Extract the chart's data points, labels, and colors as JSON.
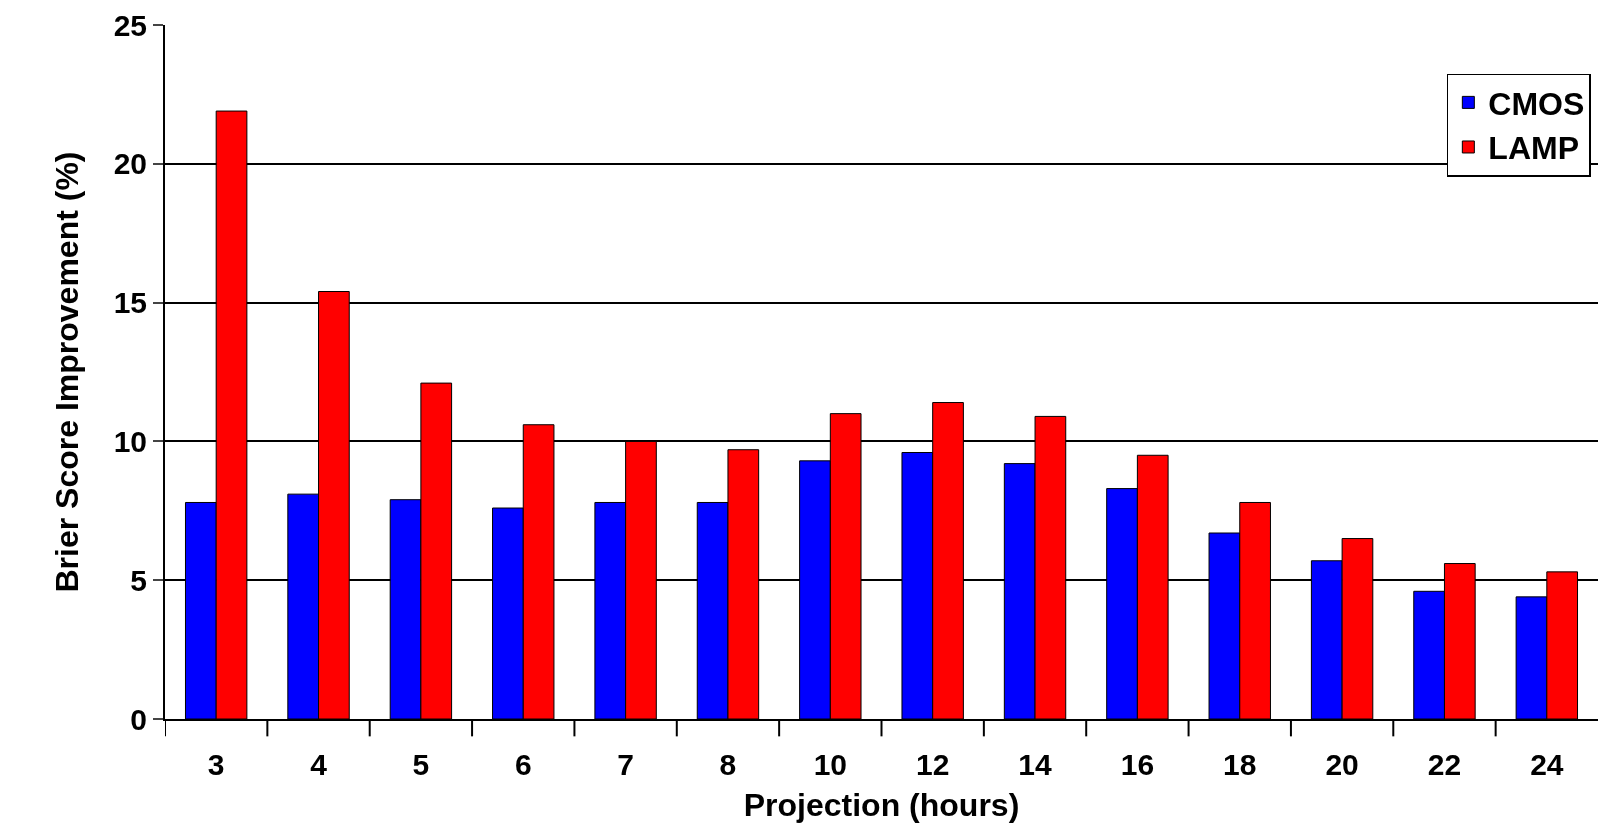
{
  "chart_data": {
    "type": "bar",
    "xlabel": "Projection (hours)",
    "ylabel": "Brier Score Improvement (%)",
    "categories": [
      "3",
      "4",
      "5",
      "6",
      "7",
      "8",
      "10",
      "12",
      "14",
      "16",
      "18",
      "20",
      "22",
      "24"
    ],
    "series": [
      {
        "name": "CMOS",
        "color": "#0000ff",
        "values": [
          7.8,
          8.1,
          7.9,
          7.6,
          7.8,
          7.8,
          9.3,
          9.6,
          9.2,
          8.3,
          6.7,
          5.7,
          4.6,
          4.4
        ]
      },
      {
        "name": "LAMP",
        "color": "#ff0000",
        "values": [
          21.9,
          15.4,
          12.1,
          10.6,
          10.0,
          9.7,
          11.0,
          11.4,
          10.9,
          9.5,
          7.8,
          6.5,
          5.6,
          5.3
        ]
      }
    ],
    "ylim": [
      0,
      25
    ],
    "yticks": [
      0,
      5,
      10,
      15,
      20,
      25
    ],
    "grid": "y",
    "legend": "top right"
  }
}
